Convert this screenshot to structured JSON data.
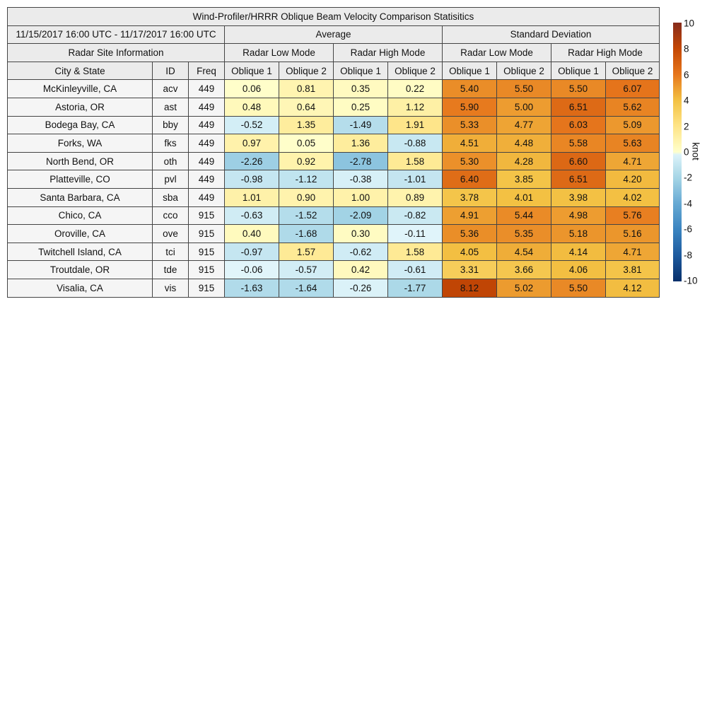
{
  "chart_data": {
    "type": "table",
    "title": "Wind-Profiler/HRRR Oblique Beam Velocity Comparison Statisitics",
    "period": "11/15/2017 16:00 UTC - 11/17/2017 16:00 UTC",
    "group_headers": [
      "Average",
      "Standard Deviation"
    ],
    "site_header": "Radar Site Information",
    "mode_headers": [
      "Radar Low Mode",
      "Radar High Mode",
      "Radar Low Mode",
      "Radar High Mode"
    ],
    "column_headers": [
      "City & State",
      "ID",
      "Freq",
      "Oblique 1",
      "Oblique 2",
      "Oblique 1",
      "Oblique 2",
      "Oblique 1",
      "Oblique 2",
      "Oblique 1",
      "Oblique 2"
    ],
    "rows": [
      {
        "city": "McKinleyville, CA",
        "id": "acv",
        "freq": "449",
        "values": [
          "0.06",
          "0.81",
          "0.35",
          "0.22",
          "5.40",
          "5.50",
          "5.50",
          "6.07"
        ]
      },
      {
        "city": "Astoria, OR",
        "id": "ast",
        "freq": "449",
        "values": [
          "0.48",
          "0.64",
          "0.25",
          "1.12",
          "5.90",
          "5.00",
          "6.51",
          "5.62"
        ]
      },
      {
        "city": "Bodega Bay, CA",
        "id": "bby",
        "freq": "449",
        "values": [
          "-0.52",
          "1.35",
          "-1.49",
          "1.91",
          "5.33",
          "4.77",
          "6.03",
          "5.09"
        ]
      },
      {
        "city": "Forks, WA",
        "id": "fks",
        "freq": "449",
        "values": [
          "0.97",
          "0.05",
          "1.36",
          "-0.88",
          "4.51",
          "4.48",
          "5.58",
          "5.63"
        ]
      },
      {
        "city": "North Bend, OR",
        "id": "oth",
        "freq": "449",
        "values": [
          "-2.26",
          "0.92",
          "-2.78",
          "1.58",
          "5.30",
          "4.28",
          "6.60",
          "4.71"
        ]
      },
      {
        "city": "Platteville, CO",
        "id": "pvl",
        "freq": "449",
        "values": [
          "-0.98",
          "-1.12",
          "-0.38",
          "-1.01",
          "6.40",
          "3.85",
          "6.51",
          "4.20"
        ]
      },
      {
        "city": "Santa Barbara, CA",
        "id": "sba",
        "freq": "449",
        "values": [
          "1.01",
          "0.90",
          "1.00",
          "0.89",
          "3.78",
          "4.01",
          "3.98",
          "4.02"
        ]
      },
      {
        "city": "Chico, CA",
        "id": "cco",
        "freq": "915",
        "values": [
          "-0.63",
          "-1.52",
          "-2.09",
          "-0.82",
          "4.91",
          "5.44",
          "4.98",
          "5.76"
        ]
      },
      {
        "city": "Oroville, CA",
        "id": "ove",
        "freq": "915",
        "values": [
          "0.40",
          "-1.68",
          "0.30",
          "-0.11",
          "5.36",
          "5.35",
          "5.18",
          "5.16"
        ]
      },
      {
        "city": "Twitchell Island, CA",
        "id": "tci",
        "freq": "915",
        "values": [
          "-0.97",
          "1.57",
          "-0.62",
          "1.58",
          "4.05",
          "4.54",
          "4.14",
          "4.71"
        ]
      },
      {
        "city": "Troutdale, OR",
        "id": "tde",
        "freq": "915",
        "values": [
          "-0.06",
          "-0.57",
          "0.42",
          "-0.61",
          "3.31",
          "3.66",
          "4.06",
          "3.81"
        ]
      },
      {
        "city": "Visalia, CA",
        "id": "vis",
        "freq": "915",
        "values": [
          "-1.63",
          "-1.64",
          "-0.26",
          "-1.77",
          "8.12",
          "5.02",
          "5.50",
          "4.12"
        ]
      }
    ],
    "colorbar": {
      "label": "knot",
      "range": [
        -10,
        10
      ],
      "ticks": [
        "10",
        "8",
        "6",
        "4",
        "2",
        "0",
        "-2",
        "-4",
        "-6",
        "-8",
        "-10"
      ],
      "stops": [
        [
          -10,
          "#08306b"
        ],
        [
          -8,
          "#1d5a9e"
        ],
        [
          -6,
          "#3a84c0"
        ],
        [
          -4,
          "#66a9d3"
        ],
        [
          -2,
          "#a5d5e6"
        ],
        [
          -0.01,
          "#e3f6fb"
        ],
        [
          0,
          "#ffffcc"
        ],
        [
          2,
          "#fee487"
        ],
        [
          4,
          "#f3c143"
        ],
        [
          6,
          "#e6761c"
        ],
        [
          8,
          "#c44704"
        ],
        [
          10,
          "#862b1c"
        ]
      ]
    }
  }
}
